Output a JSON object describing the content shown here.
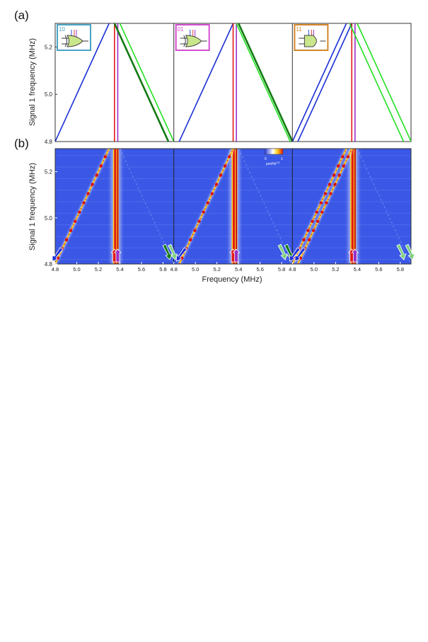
{
  "panel_labels": {
    "a": "(a)",
    "b": "(b)"
  },
  "ylabel": "Signal 1 frequency (MHz)",
  "xlabel": "Frequency (MHz)",
  "colorbar": {
    "min_label": "0",
    "max_label": "1",
    "unit_label": "pm/Hz",
    "unit_exp": "0.5"
  },
  "colors": {
    "blue_line": "#1a2fd6",
    "green_line": "#22e022",
    "dark_green_line": "#127a12",
    "red_line": "#e01818",
    "purple_line": "#9b2fc8",
    "heatmap_bg": "#3a57e6",
    "gate_10": "#4aa3c4",
    "gate_01": "#d24fd0",
    "gate_11": "#d2852a"
  },
  "chart_data": [
    {
      "type": "line",
      "panel": "(a)",
      "ylabel": "Signal 1 frequency (MHz)",
      "ylim": [
        4.8,
        5.3
      ],
      "yticks": [
        "4.8",
        "5.0",
        "5.2"
      ],
      "subpanels": [
        {
          "gate": "10",
          "gate_icon": "xor-gate-icon",
          "gate_color": "#4aa3c4",
          "xlim": [
            4.8,
            5.9
          ],
          "series": [
            {
              "color": "#1a2fd6",
              "x": [
                4.8,
                5.3
              ],
              "y": [
                4.8,
                5.3
              ]
            },
            {
              "color": "#e01818",
              "x": [
                5.35,
                5.35
              ],
              "y": [
                4.8,
                5.3
              ]
            },
            {
              "color": "#9b2fc8",
              "x": [
                5.38,
                5.38
              ],
              "y": [
                4.8,
                5.3
              ]
            },
            {
              "color": "#22e022",
              "x": [
                5.4,
                5.9
              ],
              "y": [
                5.3,
                4.8
              ]
            },
            {
              "color": "#127a12",
              "x": [
                5.35,
                5.85
              ],
              "y": [
                5.3,
                4.8
              ]
            }
          ]
        },
        {
          "gate": "01",
          "gate_icon": "xor-gate-icon",
          "gate_color": "#d24fd0",
          "xlim": [
            4.8,
            5.9
          ],
          "series": [
            {
              "color": "#1a2fd6",
              "x": [
                4.85,
                5.35
              ],
              "y": [
                4.8,
                5.3
              ]
            },
            {
              "color": "#e01818",
              "x": [
                5.35,
                5.35
              ],
              "y": [
                4.8,
                5.3
              ]
            },
            {
              "color": "#9b2fc8",
              "x": [
                5.38,
                5.38
              ],
              "y": [
                4.8,
                5.3
              ]
            },
            {
              "color": "#22e022",
              "x": [
                5.38,
                5.88
              ],
              "y": [
                5.3,
                4.8
              ]
            },
            {
              "color": "#127a12",
              "x": [
                5.4,
                5.9
              ],
              "y": [
                5.3,
                4.8
              ]
            }
          ]
        },
        {
          "gate": "11",
          "gate_icon": "and-gate-icon",
          "gate_color": "#d2852a",
          "xlim": [
            4.8,
            5.9
          ],
          "series": [
            {
              "color": "#1a2fd6",
              "x": [
                4.8,
                5.3
              ],
              "y": [
                4.8,
                5.3
              ]
            },
            {
              "color": "#1a2fd6",
              "x": [
                4.85,
                5.35
              ],
              "y": [
                4.8,
                5.3
              ]
            },
            {
              "color": "#e01818",
              "x": [
                5.35,
                5.35
              ],
              "y": [
                4.8,
                5.3
              ]
            },
            {
              "color": "#9b2fc8",
              "x": [
                5.38,
                5.38
              ],
              "y": [
                4.8,
                5.3
              ]
            },
            {
              "color": "#22e022",
              "x": [
                5.4,
                5.9
              ],
              "y": [
                5.3,
                4.8
              ]
            },
            {
              "color": "#22e022",
              "x": [
                5.33,
                5.83
              ],
              "y": [
                5.3,
                4.8
              ]
            }
          ]
        }
      ]
    },
    {
      "type": "heatmap",
      "panel": "(b)",
      "xlabel": "Frequency (MHz)",
      "ylabel": "Signal 1 frequency (MHz)",
      "xlim": [
        4.8,
        5.9
      ],
      "ylim": [
        4.8,
        5.3
      ],
      "xticks": [
        "4.8",
        "5.0",
        "5.2",
        "5.4",
        "5.6",
        "5.8"
      ],
      "yticks": [
        "4.8",
        "5.0",
        "5.2"
      ],
      "colorbar_range": [
        0,
        1
      ],
      "subpanels": [
        {
          "gate": "10",
          "diagonals": [
            [
              4.8,
              5.3
            ]
          ],
          "vertical": [
            5.35,
            5.38
          ],
          "arrows": [
            {
              "x": 4.82,
              "color": "#1a2fd6"
            },
            {
              "x": 5.35,
              "color": "#e01818"
            },
            {
              "x": 5.38,
              "color": "#9b2fc8"
            },
            {
              "x": 5.85,
              "color": "#127a12"
            },
            {
              "x": 5.9,
              "color": "#7fcf7f"
            }
          ]
        },
        {
          "gate": "01",
          "diagonals": [
            [
              4.85,
              5.35
            ]
          ],
          "vertical": [
            5.35,
            5.38
          ],
          "arrows": [
            {
              "x": 4.87,
              "color": "#1a2fd6"
            },
            {
              "x": 5.35,
              "color": "#e01818"
            },
            {
              "x": 5.38,
              "color": "#9b2fc8"
            },
            {
              "x": 5.82,
              "color": "#7fcf7f"
            },
            {
              "x": 5.88,
              "color": "#127a12"
            }
          ]
        },
        {
          "gate": "11",
          "diagonals": [
            [
              4.8,
              5.3
            ],
            [
              4.85,
              5.35
            ]
          ],
          "vertical": [
            5.35,
            5.38
          ],
          "arrows": [
            {
              "x": 4.82,
              "color": "#1a2fd6"
            },
            {
              "x": 4.87,
              "color": "#1a2fd6"
            },
            {
              "x": 5.35,
              "color": "#e01818"
            },
            {
              "x": 5.38,
              "color": "#9b2fc8"
            },
            {
              "x": 5.82,
              "color": "#7fcf7f"
            },
            {
              "x": 5.9,
              "color": "#7fcf7f"
            }
          ]
        }
      ]
    }
  ]
}
